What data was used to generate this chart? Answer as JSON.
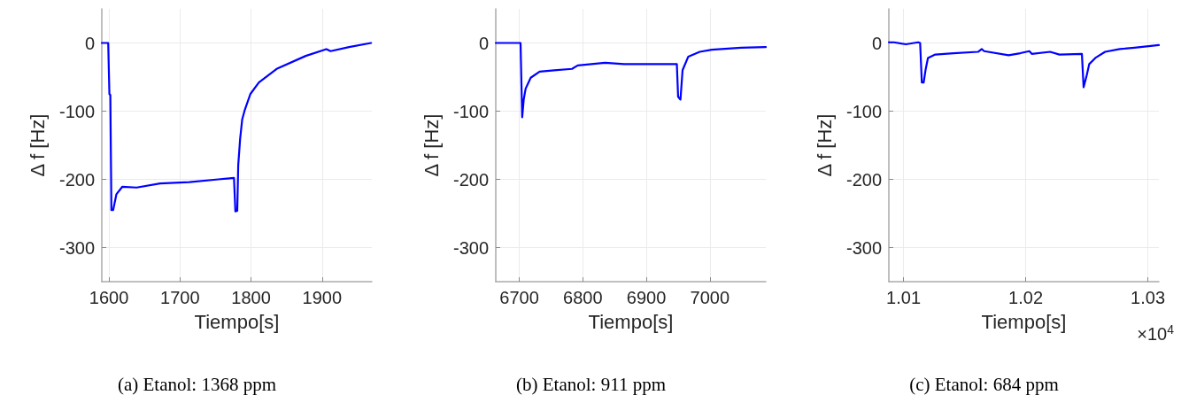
{
  "chart_data": [
    {
      "type": "line",
      "title": "(a) Etanol: 1368 ppm",
      "xlabel": "Tiempo[s]",
      "ylabel": "Δ f [Hz]",
      "xlim": [
        1590,
        1970
      ],
      "ylim": [
        -350,
        50
      ],
      "xticks": [
        1600,
        1700,
        1800,
        1900
      ],
      "yticks": [
        -300,
        -200,
        -100,
        0
      ],
      "grid": true,
      "line_style": "solid",
      "marker": "none",
      "series": [
        {
          "color": "#0000ff",
          "x": [
            1590,
            1599,
            1600.7,
            1602,
            1603.5,
            1606,
            1610.5,
            1618.7,
            1639,
            1672,
            1713,
            1754,
            1776,
            1778,
            1780.6,
            1782,
            1784.7,
            1787.6,
            1791,
            1799,
            1811,
            1836,
            1877,
            1906,
            1912,
            1938,
            1969
          ],
          "values": [
            0,
            0,
            -75,
            -76,
            -245,
            -245,
            -222,
            -211,
            -212,
            -206,
            -204,
            -200,
            -198,
            -247,
            -246,
            -179,
            -140,
            -112,
            -99,
            -75,
            -58,
            -38,
            -19,
            -9,
            -12,
            -6,
            0
          ]
        }
      ]
    },
    {
      "type": "line",
      "title": "(b) Etanol: 911 ppm",
      "xlabel": "Tiempo[s]",
      "ylabel": "Δ f [Hz]",
      "xlim": [
        6663,
        7088
      ],
      "ylim": [
        -350,
        50
      ],
      "xticks": [
        6700,
        6800,
        6900,
        7000
      ],
      "yticks": [
        -300,
        -200,
        -100,
        0
      ],
      "grid": true,
      "line_style": "solid",
      "marker": "none",
      "series": [
        {
          "color": "#0000ff",
          "x": [
            6663,
            6702,
            6704.6,
            6707,
            6710,
            6718,
            6732,
            6755,
            6783,
            6792,
            6835,
            6865,
            6948,
            6950,
            6953.7,
            6957,
            6966,
            6984,
            7003,
            7049,
            7088
          ],
          "values": [
            0,
            0,
            -109,
            -83,
            -67,
            -51,
            -42,
            -40,
            -38,
            -33,
            -29,
            -31,
            -31,
            -79,
            -83,
            -40,
            -20,
            -13,
            -10,
            -7,
            -6
          ]
        }
      ]
    },
    {
      "type": "line",
      "title": "(c) Etanol: 684 ppm",
      "xlabel": "Tiempo[s]",
      "ylabel": "Δ f [Hz]",
      "annotations": [
        "×10$^{4}$"
      ],
      "xlim": [
        1.0088,
        1.0309
      ],
      "ylim": [
        -350,
        50
      ],
      "xticks": [
        1.01,
        1.02,
        1.03
      ],
      "yticks": [
        -300,
        -200,
        -100,
        0
      ],
      "grid": true,
      "line_style": "solid",
      "marker": "none",
      "series": [
        {
          "color": "#0000ff",
          "x": [
            1.0088,
            1.0092,
            1.0102,
            1.0112,
            1.01136,
            1.0115,
            1.01165,
            1.0118,
            1.012,
            1.0126,
            1.0141,
            1.0161,
            1.0164,
            1.0166,
            1.0186,
            1.01956,
            1.0203,
            1.0205,
            1.022,
            1.02276,
            1.0246,
            1.02474,
            1.025,
            1.0252,
            1.0257,
            1.0265,
            1.0277,
            1.0289,
            1.0309
          ],
          "values": [
            1,
            1,
            -2,
            1,
            0,
            -58,
            -58,
            -40,
            -22,
            -17,
            -15,
            -13,
            -9,
            -12,
            -18,
            -15,
            -12,
            -16,
            -13,
            -17,
            -16,
            -65,
            -47,
            -31,
            -22,
            -13,
            -9,
            -7,
            -3
          ]
        }
      ]
    }
  ]
}
